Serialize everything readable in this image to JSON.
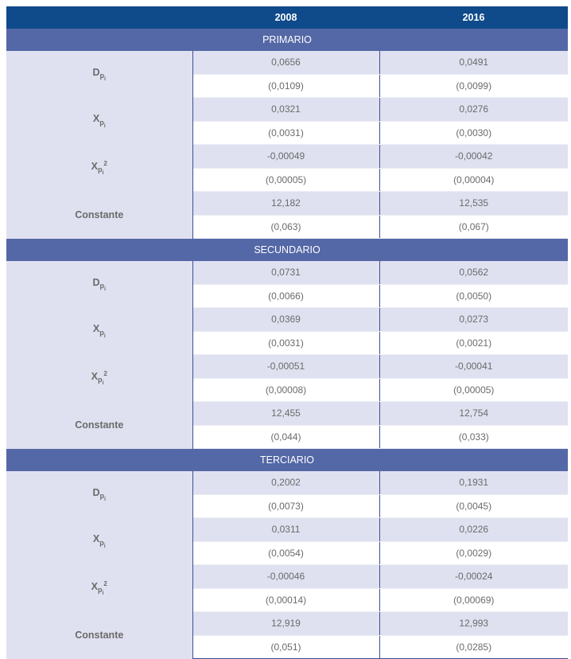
{
  "header": {
    "col0": "",
    "col1": "2008",
    "col2": "2016"
  },
  "colors": {
    "header": "#0f4a8a",
    "section": "#5467a6",
    "shade": "#dfe1f0"
  },
  "sections": [
    {
      "title": "PRIMARIO",
      "vars": [
        {
          "main": "D",
          "sub": "p",
          "idx": "i",
          "sup": "",
          "coef": [
            "0,0656",
            "0,0491"
          ],
          "se": [
            "(0,0109)",
            "(0,0099)"
          ]
        },
        {
          "main": "X",
          "sub": "p",
          "idx": "i",
          "sup": "",
          "coef": [
            "0,0321",
            "0,0276"
          ],
          "se": [
            "(0,0031)",
            "(0,0030)"
          ]
        },
        {
          "main": "X",
          "sub": "p",
          "idx": "i",
          "sup": "2",
          "coef": [
            "-0,00049",
            "-0,00042"
          ],
          "se": [
            "(0,00005)",
            "(0,00004)"
          ]
        },
        {
          "main": "Constante",
          "sub": "",
          "idx": "",
          "sup": "",
          "coef": [
            "12,182",
            "12,535"
          ],
          "se": [
            "(0,063)",
            "(0,067)"
          ]
        }
      ]
    },
    {
      "title": "SECUNDARIO",
      "vars": [
        {
          "main": "D",
          "sub": "p",
          "idx": "i",
          "sup": "",
          "coef": [
            "0,0731",
            "0,0562"
          ],
          "se": [
            "(0,0066)",
            "(0,0050)"
          ]
        },
        {
          "main": "X",
          "sub": "p",
          "idx": "i",
          "sup": "",
          "coef": [
            "0,0369",
            "0,0273"
          ],
          "se": [
            "(0,0031)",
            "(0,0021)"
          ]
        },
        {
          "main": "X",
          "sub": "p",
          "idx": "i",
          "sup": "2",
          "coef": [
            "-0,00051",
            "-0,00041"
          ],
          "se": [
            "(0,00008)",
            "(0,00005)"
          ]
        },
        {
          "main": "Constante",
          "sub": "",
          "idx": "",
          "sup": "",
          "coef": [
            "12,455",
            "12,754"
          ],
          "se": [
            "(0,044)",
            "(0,033)"
          ]
        }
      ]
    },
    {
      "title": "TERCIARIO",
      "vars": [
        {
          "main": "D",
          "sub": "p",
          "idx": "i",
          "sup": "",
          "coef": [
            "0,2002",
            "0,1931"
          ],
          "se": [
            "(0,0073)",
            "(0,0045)"
          ]
        },
        {
          "main": "X",
          "sub": "p",
          "idx": "i",
          "sup": "",
          "coef": [
            "0,0311",
            "0,0226"
          ],
          "se": [
            "(0,0054)",
            "(0,0029)"
          ]
        },
        {
          "main": "X",
          "sub": "p",
          "idx": "i",
          "sup": "2",
          "coef": [
            "-0,00046",
            "-0,00024"
          ],
          "se": [
            "(0,00014)",
            "(0,00069)"
          ]
        },
        {
          "main": "Constante",
          "sub": "",
          "idx": "",
          "sup": "",
          "coef": [
            "12,919",
            "12,993"
          ],
          "se": [
            "(0,051)",
            "(0,0285)"
          ]
        }
      ]
    }
  ]
}
